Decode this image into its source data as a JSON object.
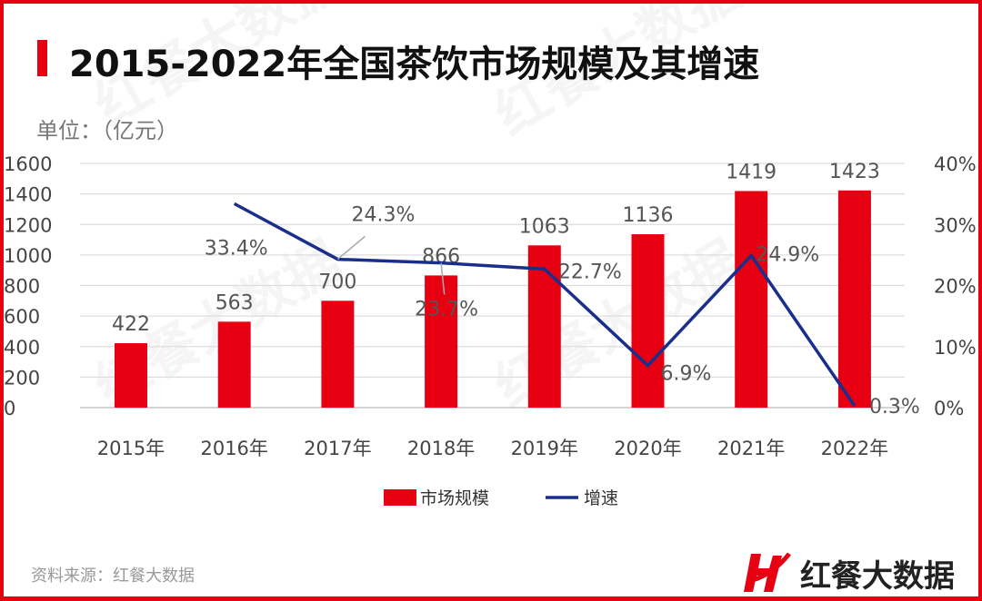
{
  "title": "2015-2022年全国茶饮市场规模及其增速",
  "unit": "单位：（亿元）",
  "source": "资料来源：红餐大数据",
  "logo_text": "红餐大数据",
  "watermark": "红餐大数据",
  "colors": {
    "bar": "#e60012",
    "line": "#1a2f8c",
    "border": "#e60012"
  },
  "chart_data": {
    "type": "bar+line",
    "categories": [
      "2015年",
      "2016年",
      "2017年",
      "2018年",
      "2019年",
      "2020年",
      "2021年",
      "2022年"
    ],
    "series": [
      {
        "name": "市场规模",
        "type": "bar",
        "axis": "left",
        "values": [
          422,
          563,
          700,
          866,
          1063,
          1136,
          1419,
          1423
        ],
        "labels": [
          "422",
          "563",
          "700",
          "866",
          "1063",
          "1136",
          "1419",
          "1423"
        ]
      },
      {
        "name": "增速",
        "type": "line",
        "axis": "right",
        "values": [
          null,
          33.4,
          24.3,
          23.7,
          22.7,
          6.9,
          24.9,
          0.3
        ],
        "labels": [
          "",
          "33.4%",
          "24.3%",
          "23.7%",
          "22.7%",
          "6.9%",
          "24.9%",
          "0.3%"
        ]
      }
    ],
    "left_axis": {
      "range": [
        0,
        1600
      ],
      "ticks": [
        "0",
        "200",
        "400",
        "600",
        "800",
        "1000",
        "1200",
        "1400",
        "1600"
      ]
    },
    "right_axis": {
      "range": [
        0,
        40
      ],
      "ticks": [
        "0%",
        "10%",
        "20%",
        "30%",
        "40%"
      ]
    },
    "grid": true,
    "legend": "bottom"
  }
}
